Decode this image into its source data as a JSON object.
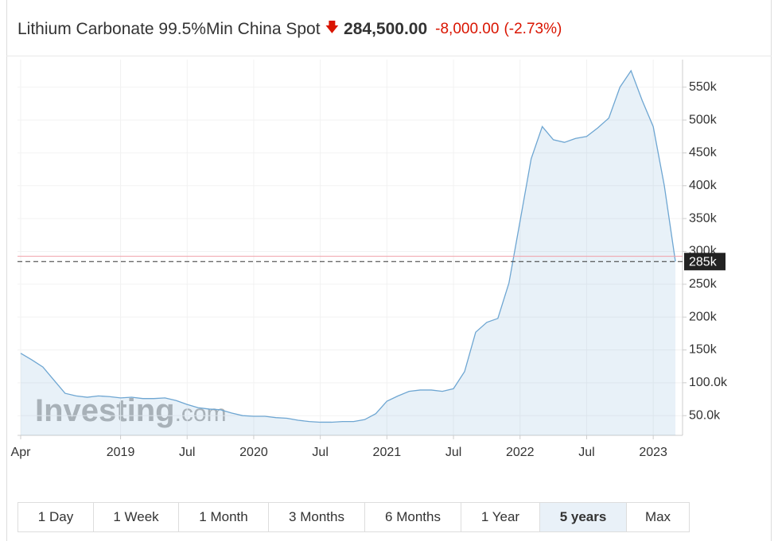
{
  "header": {
    "title": "Lithium Carbonate 99.5%Min China Spot",
    "price": "284,500.00",
    "change": "-8,000.00",
    "change_percent": "(-2.73%)"
  },
  "chart_data": {
    "type": "area",
    "categories": [
      "Apr",
      null,
      null,
      null,
      null,
      null,
      null,
      null,
      null,
      "2019",
      null,
      null,
      null,
      null,
      null,
      "Jul",
      null,
      null,
      null,
      null,
      null,
      "2020",
      null,
      null,
      null,
      null,
      null,
      "Jul",
      null,
      null,
      null,
      null,
      null,
      "2021",
      null,
      null,
      null,
      null,
      null,
      "Jul",
      null,
      null,
      null,
      null,
      null,
      "2022",
      null,
      null,
      null,
      null,
      null,
      "Jul",
      null,
      null,
      null,
      null,
      null,
      "2023",
      null,
      null
    ],
    "series": [
      {
        "name": "Lithium Carbonate 99.5%Min China Spot",
        "color": "#6ea6d2",
        "values": [
          145000,
          135000,
          124000,
          104000,
          84000,
          80000,
          78000,
          80000,
          79000,
          77000,
          78000,
          76000,
          76000,
          77000,
          73000,
          67000,
          62000,
          60000,
          59000,
          54000,
          50000,
          49000,
          49000,
          47000,
          46000,
          43000,
          41000,
          40000,
          40000,
          41000,
          41000,
          44000,
          53000,
          72000,
          80000,
          87000,
          89000,
          89000,
          87000,
          91000,
          117000,
          177000,
          192000,
          198000,
          252000,
          346000,
          441000,
          490000,
          470000,
          466000,
          472000,
          475000,
          488000,
          503000,
          550000,
          575000,
          530000,
          490000,
          400000,
          284500
        ]
      }
    ],
    "ylim": [
      20000,
      592000
    ],
    "yticks": [
      {
        "value": 50000,
        "label": "50.0k"
      },
      {
        "value": 100000,
        "label": "100.0k"
      },
      {
        "value": 150000,
        "label": "150k"
      },
      {
        "value": 200000,
        "label": "200k"
      },
      {
        "value": 250000,
        "label": "250k"
      },
      {
        "value": 300000,
        "label": "300k"
      },
      {
        "value": 350000,
        "label": "350k"
      },
      {
        "value": 400000,
        "label": "400k"
      },
      {
        "value": 450000,
        "label": "450k"
      },
      {
        "value": 500000,
        "label": "500k"
      },
      {
        "value": 550000,
        "label": "550k"
      }
    ],
    "grid": true,
    "last_value": {
      "value": 284500,
      "label": "285k"
    },
    "reference_line": {
      "value": 292500,
      "color": "#f0a0a8"
    },
    "watermark": {
      "brand": "Investing",
      "suffix": ".com"
    }
  },
  "buttons": [
    "1 Day",
    "1 Week",
    "1 Month",
    "3 Months",
    "6 Months",
    "1 Year",
    "5 years",
    "Max"
  ],
  "active_button": "5 years"
}
